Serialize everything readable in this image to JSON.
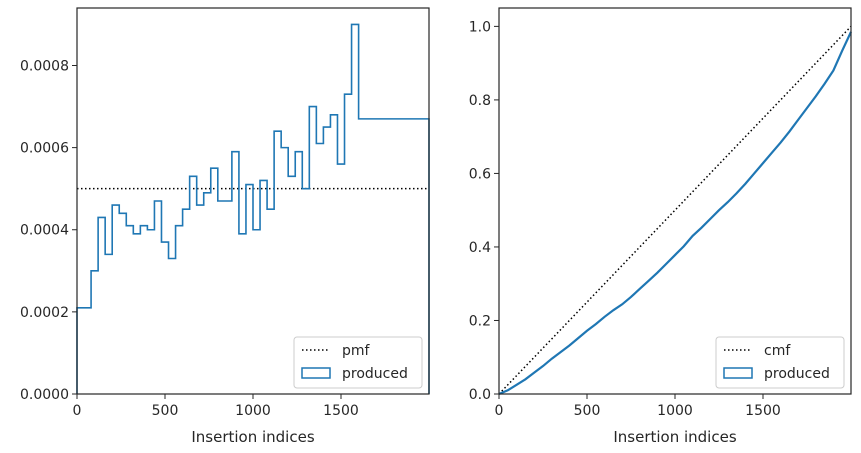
{
  "chart_data": [
    {
      "type": "histogram",
      "xlabel": "Insertion indices",
      "ylabel": "",
      "xlim": [
        0,
        2000
      ],
      "ylim": [
        0,
        0.00094
      ],
      "xticks": [
        0,
        500,
        1000,
        1500
      ],
      "xtick_labels": [
        "0",
        "500",
        "1000",
        "1500"
      ],
      "yticks": [
        0,
        0.0002,
        0.0004,
        0.0006,
        0.0008
      ],
      "ytick_labels": [
        "0.0000",
        "0.0002",
        "0.0004",
        "0.0006",
        "0.0008"
      ],
      "grid": false,
      "legend_position": "lower-right",
      "series": [
        {
          "name": "pmf",
          "type": "line",
          "style": "dotted",
          "color": "#000000",
          "x": [
            0,
            2000
          ],
          "y": [
            0.0005,
            0.0005
          ]
        },
        {
          "name": "produced",
          "type": "step-histogram",
          "color": "#1f77b4",
          "bin_edges": [
            0,
            40,
            80,
            120,
            160,
            200,
            240,
            280,
            320,
            360,
            400,
            440,
            480,
            520,
            560,
            600,
            640,
            680,
            720,
            760,
            800,
            840,
            880,
            920,
            960,
            1000,
            1040,
            1080,
            1120,
            1160,
            1200,
            1240,
            1280,
            1320,
            1360,
            1400,
            1440,
            1480,
            1520,
            1560,
            1600,
            1640,
            1680,
            1720,
            1760,
            1800,
            1840,
            1880,
            1920,
            1960,
            2000
          ],
          "values": [
            0.00021,
            0.00021,
            0.0003,
            0.00043,
            0.00034,
            0.00046,
            0.00044,
            0.00041,
            0.00039,
            0.00041,
            0.0004,
            0.00047,
            0.00037,
            0.00033,
            0.00041,
            0.00045,
            0.00053,
            0.00046,
            0.00049,
            0.00055,
            0.00047,
            0.00047,
            0.00059,
            0.00039,
            0.00051,
            0.0004,
            0.00052,
            0.00045,
            0.00064,
            0.0006,
            0.00053,
            0.00059,
            0.0005,
            0.0007,
            0.00061,
            0.00065,
            0.00068,
            0.00056,
            0.00073,
            0.0009,
            0.00067,
            0.00067,
            0.00067,
            0.00067,
            0.00067,
            0.00067,
            0.00067,
            0.00067,
            0.00067,
            0.00067
          ]
        }
      ],
      "legend": [
        {
          "label": "pmf",
          "kind": "line"
        },
        {
          "label": "produced",
          "kind": "patch"
        }
      ]
    },
    {
      "type": "line",
      "xlabel": "Insertion indices",
      "ylabel": "",
      "xlim": [
        0,
        2000
      ],
      "ylim": [
        0,
        1.05
      ],
      "xticks": [
        0,
        500,
        1000,
        1500
      ],
      "xtick_labels": [
        "0",
        "500",
        "1000",
        "1500"
      ],
      "yticks": [
        0,
        0.2,
        0.4,
        0.6,
        0.8,
        1.0
      ],
      "ytick_labels": [
        "0.0",
        "0.2",
        "0.4",
        "0.6",
        "0.8",
        "1.0"
      ],
      "grid": false,
      "legend_position": "lower-right",
      "series": [
        {
          "name": "cmf",
          "type": "line",
          "style": "dotted",
          "color": "#000000",
          "x": [
            0,
            2000
          ],
          "y": [
            0,
            1.0
          ]
        },
        {
          "name": "produced",
          "type": "line",
          "color": "#1f77b4",
          "x": [
            0,
            50,
            100,
            150,
            200,
            250,
            300,
            350,
            400,
            450,
            500,
            550,
            600,
            650,
            700,
            750,
            800,
            850,
            900,
            950,
            1000,
            1050,
            1100,
            1150,
            1200,
            1250,
            1300,
            1350,
            1400,
            1450,
            1500,
            1550,
            1600,
            1650,
            1700,
            1750,
            1800,
            1850,
            1900,
            1950,
            2000
          ],
          "y": [
            0,
            0.01,
            0.025,
            0.04,
            0.058,
            0.076,
            0.096,
            0.114,
            0.132,
            0.152,
            0.172,
            0.19,
            0.21,
            0.228,
            0.244,
            0.264,
            0.286,
            0.308,
            0.33,
            0.354,
            0.378,
            0.402,
            0.43,
            0.452,
            0.476,
            0.5,
            0.522,
            0.546,
            0.572,
            0.6,
            0.628,
            0.656,
            0.684,
            0.714,
            0.746,
            0.778,
            0.81,
            0.844,
            0.88,
            0.934,
            0.985
          ]
        }
      ],
      "legend": [
        {
          "label": "cmf",
          "kind": "line"
        },
        {
          "label": "produced",
          "kind": "patch"
        }
      ]
    }
  ]
}
